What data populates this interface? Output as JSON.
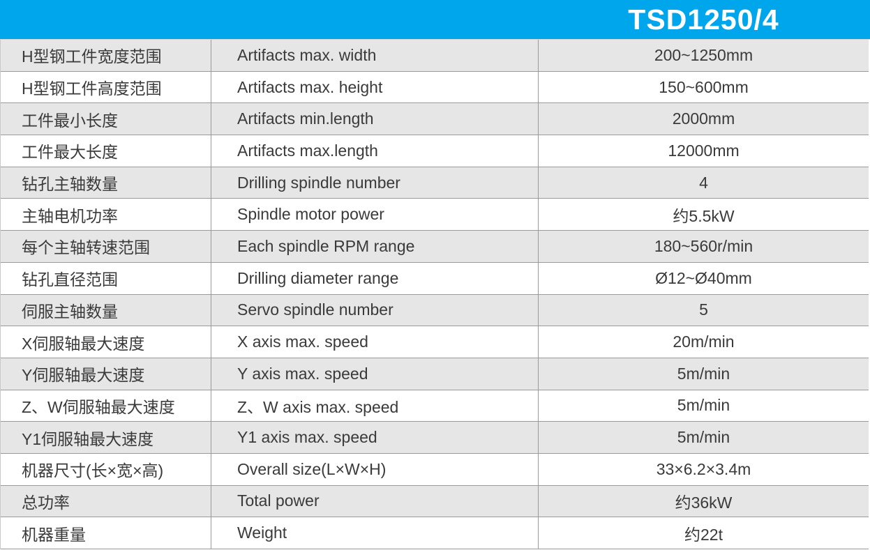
{
  "header": {
    "title": "TSD1250/4"
  },
  "colors": {
    "accent": "#00A6EC",
    "row_alt": "#E6E6E6",
    "border": "#9A9A9A",
    "text": "#3A3A3A",
    "title_text": "#FFFFFF"
  },
  "table": {
    "columns": [
      "chinese-label",
      "english-label",
      "value"
    ],
    "rows": [
      {
        "cn": "H型钢工件宽度范围",
        "en": "Artifacts max. width",
        "value": "200~1250mm"
      },
      {
        "cn": "H型钢工件高度范围",
        "en": "Artifacts max. height",
        "value": "150~600mm"
      },
      {
        "cn": "工件最小长度",
        "en": "Artifacts min.length",
        "value": "2000mm"
      },
      {
        "cn": "工件最大长度",
        "en": "Artifacts max.length",
        "value": "12000mm"
      },
      {
        "cn": "钻孔主轴数量",
        "en": "Drilling spindle number",
        "value": "4"
      },
      {
        "cn": "主轴电机功率",
        "en": "Spindle motor power",
        "value": "约5.5kW"
      },
      {
        "cn": "每个主轴转速范围",
        "en": "Each spindle RPM range",
        "value": "180~560r/min"
      },
      {
        "cn": "钻孔直径范围",
        "en": "Drilling diameter range",
        "value": "Ø12~Ø40mm"
      },
      {
        "cn": "伺服主轴数量",
        "en": "Servo spindle number",
        "value": "5"
      },
      {
        "cn": "X伺服轴最大速度",
        "en": "X axis max. speed",
        "value": "20m/min"
      },
      {
        "cn": "Y伺服轴最大速度",
        "en": "Y axis max. speed",
        "value": "5m/min"
      },
      {
        "cn": "Z、W伺服轴最大速度",
        "en": "Z、W axis max. speed",
        "value": "5m/min"
      },
      {
        "cn": "Y1伺服轴最大速度",
        "en": "Y1 axis max. speed",
        "value": "5m/min"
      },
      {
        "cn": "机器尺寸(长×宽×高)",
        "en": "Overall size(L×W×H)",
        "value": "33×6.2×3.4m"
      },
      {
        "cn": "总功率",
        "en": "Total power",
        "value": "约36kW"
      },
      {
        "cn": "机器重量",
        "en": "Weight",
        "value": "约22t"
      }
    ]
  }
}
